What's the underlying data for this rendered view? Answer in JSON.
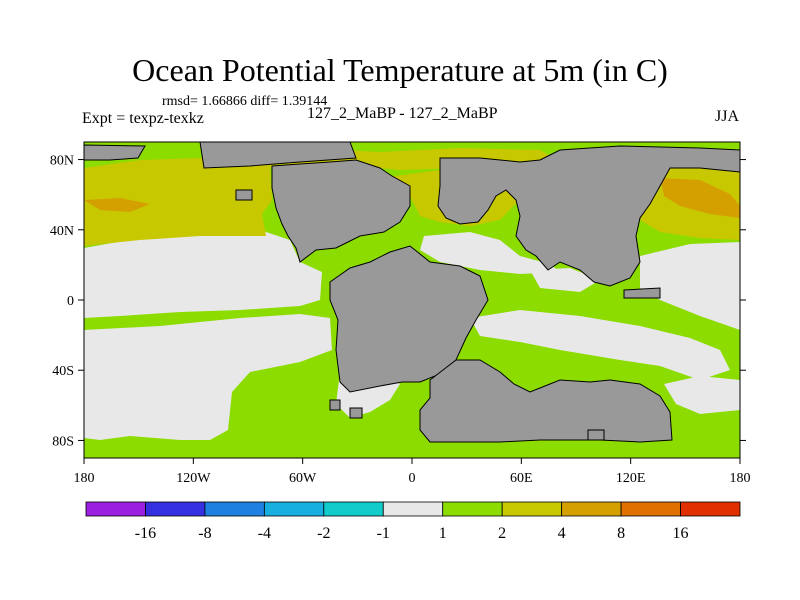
{
  "title": "Ocean Potential Temperature at 5m (in C)",
  "stats_line": "rmsd= 1.66866 diff= 1.39144",
  "experiment": "Expt = texpz-texkz",
  "subtitle": "127_2_MaBP - 127_2_MaBP",
  "season": "JJA",
  "map": {
    "projection": "cylindrical equidistant",
    "lon_range": [
      -180,
      180
    ],
    "lat_range": [
      -90,
      90
    ],
    "lat_ticks": [
      {
        "value": 80,
        "label": "80N"
      },
      {
        "value": 40,
        "label": "40N"
      },
      {
        "value": 0,
        "label": "0"
      },
      {
        "value": -40,
        "label": "40S"
      },
      {
        "value": -80,
        "label": "80S"
      }
    ],
    "lon_ticks": [
      {
        "value": -180,
        "label": "180"
      },
      {
        "value": -120,
        "label": "120W"
      },
      {
        "value": -60,
        "label": "60W"
      },
      {
        "value": 0,
        "label": "0"
      },
      {
        "value": 60,
        "label": "60E"
      },
      {
        "value": 120,
        "label": "120E"
      },
      {
        "value": 180,
        "label": "180"
      }
    ],
    "land_color": "#999999",
    "ocean_base_color": "#8cdc00",
    "colors": {
      "near_zero": "#e8e8e8",
      "band_2_4": "#c8c800",
      "band_4_8": "#d4a000",
      "band_8_16": "#e07000"
    }
  },
  "colorbar": {
    "colors": [
      "#9b20e0",
      "#3430e0",
      "#1e80e0",
      "#17aee0",
      "#12cccc",
      "#e8e8e8",
      "#8cdc00",
      "#c8c800",
      "#d4a000",
      "#e07000",
      "#e03000"
    ],
    "labels": [
      "-16",
      "-8",
      "-4",
      "-2",
      "-1",
      "1",
      "2",
      "4",
      "8",
      "16"
    ]
  }
}
